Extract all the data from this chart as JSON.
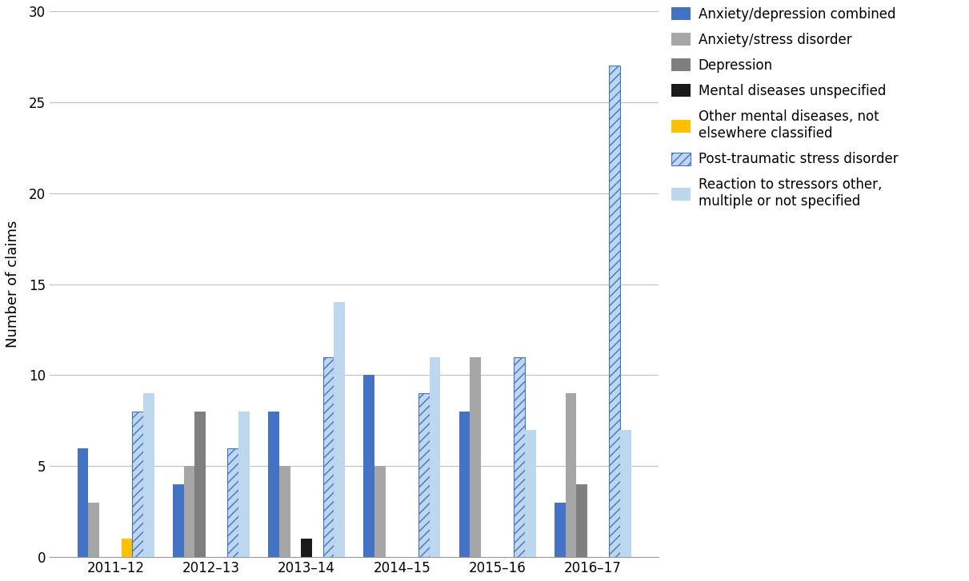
{
  "years": [
    "2011–12",
    "2012–13",
    "2013–14",
    "2014–15",
    "2015–16",
    "2016–17"
  ],
  "series": [
    {
      "label": "Anxiety/depression combined",
      "color": "#4472C4",
      "hatch": null,
      "values": [
        6,
        4,
        8,
        10,
        8,
        3
      ]
    },
    {
      "label": "Anxiety/stress disorder",
      "color": "#A6A6A6",
      "hatch": null,
      "values": [
        3,
        5,
        5,
        5,
        11,
        9
      ]
    },
    {
      "label": "Depression",
      "color": "#7F7F7F",
      "hatch": null,
      "values": [
        0,
        8,
        0,
        0,
        0,
        4
      ]
    },
    {
      "label": "Mental diseases unspecified",
      "color": "#1a1a1a",
      "hatch": null,
      "values": [
        0,
        0,
        1,
        0,
        0,
        0
      ]
    },
    {
      "label": "Other mental diseases, not\nelsewhere classified",
      "color": "#FFC000",
      "hatch": null,
      "values": [
        1,
        0,
        0,
        0,
        0,
        0
      ]
    },
    {
      "label": "Post-traumatic stress disorder",
      "color": "#BDD7EE",
      "hatch": "///",
      "values": [
        8,
        6,
        11,
        9,
        11,
        27
      ]
    },
    {
      "label": "Reaction to stressors other,\nmultiple or not specified",
      "color": "#BDD7EE",
      "hatch": null,
      "values": [
        9,
        8,
        14,
        11,
        7,
        7
      ]
    }
  ],
  "ylabel": "Number of claims",
  "ylim": [
    0,
    30
  ],
  "yticks": [
    0,
    5,
    10,
    15,
    20,
    25,
    30
  ],
  "bar_width": 0.115,
  "background_color": "#ffffff",
  "grid_color": "#c0c0c0",
  "legend_fontsize": 12,
  "ylabel_fontsize": 13,
  "tick_fontsize": 12
}
